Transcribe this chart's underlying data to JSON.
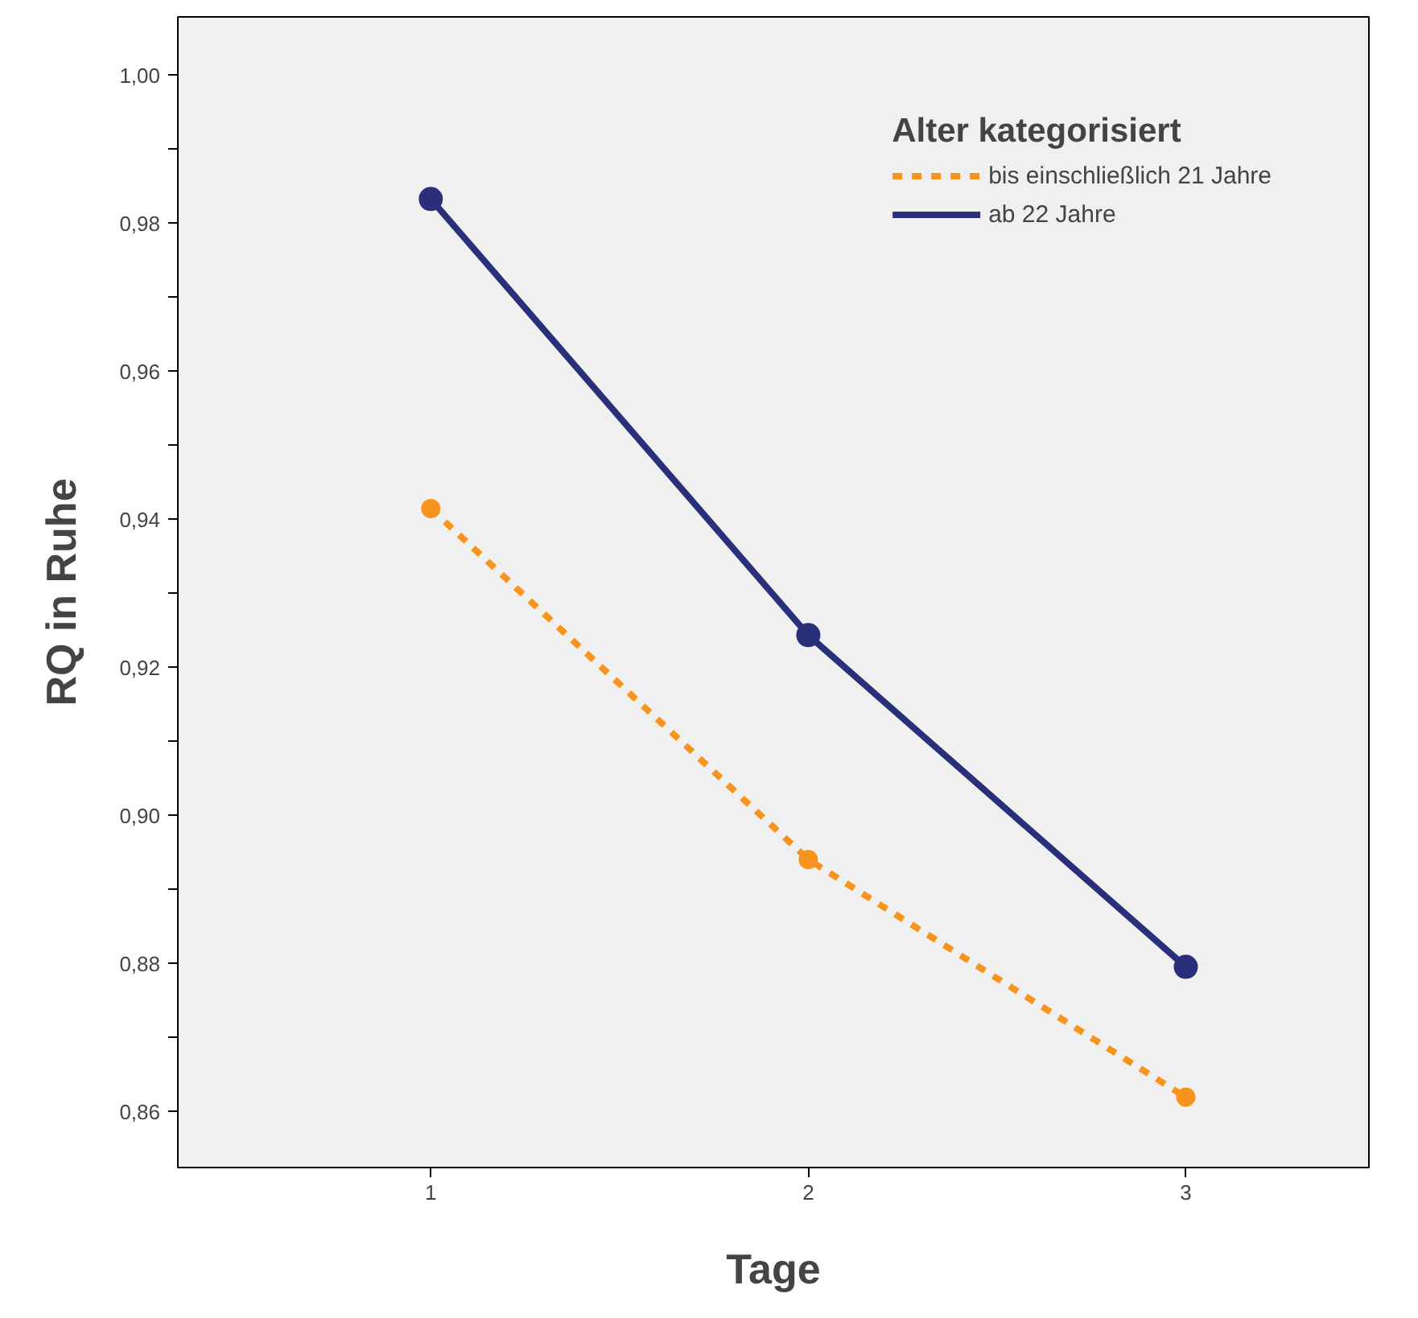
{
  "chart_data": {
    "type": "line",
    "xlabel": "Tage",
    "ylabel": "RQ in Ruhe",
    "legend_title": "Alter kategorisiert",
    "x": [
      1,
      2,
      3
    ],
    "series": [
      {
        "name": "bis einschließlich 21 Jahre",
        "color": "#f7941d",
        "values": [
          0.9415,
          0.8941,
          0.862
        ],
        "line_style": "dashed",
        "marker": "circle"
      },
      {
        "name": "ab 22 Jahre",
        "color": "#2a2f7a",
        "values": [
          0.9833,
          0.9244,
          0.8796
        ],
        "line_style": "solid",
        "marker": "circle"
      }
    ],
    "xlim": [
      0.33,
      3.485
    ],
    "ylim": [
      0.8525,
      1.0079
    ],
    "xticks": [
      1,
      2,
      3
    ],
    "yticks": [
      {
        "value": 0.86,
        "label": "0,86"
      },
      {
        "value": 0.87,
        "label": null
      },
      {
        "value": 0.88,
        "label": "0,88"
      },
      {
        "value": 0.89,
        "label": null
      },
      {
        "value": 0.9,
        "label": "0,90"
      },
      {
        "value": 0.91,
        "label": null
      },
      {
        "value": 0.92,
        "label": "0,92"
      },
      {
        "value": 0.93,
        "label": null
      },
      {
        "value": 0.94,
        "label": "0,94"
      },
      {
        "value": 0.95,
        "label": null
      },
      {
        "value": 0.96,
        "label": "0,96"
      },
      {
        "value": 0.97,
        "label": null
      },
      {
        "value": 0.98,
        "label": "0,98"
      },
      {
        "value": 0.99,
        "label": null
      },
      {
        "value": 1.0,
        "label": "1,00"
      }
    ],
    "grid": false,
    "legend": "top right"
  }
}
